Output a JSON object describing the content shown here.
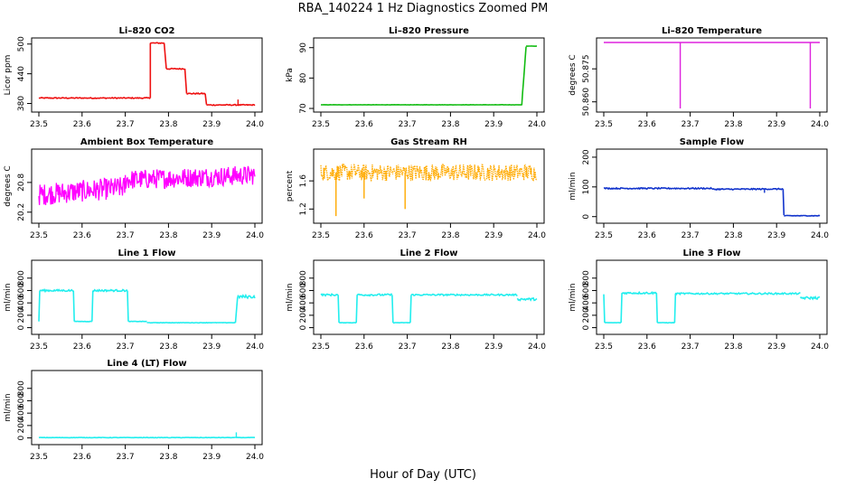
{
  "figure": {
    "title": "RBA_140224  1 Hz Diagnostics Zoomed PM",
    "xlabel": "Hour of Day (UTC)"
  },
  "chart_data": [
    {
      "type": "line",
      "title": "Li–820 CO2",
      "ylabel": "Licor ppm",
      "color": "#ee1111",
      "xlim": [
        23.5,
        24.0
      ],
      "xticks": [
        23.5,
        23.6,
        23.7,
        23.8,
        23.9,
        24.0
      ],
      "ylim": [
        370,
        505
      ],
      "yticks": [
        380,
        440,
        500
      ],
      "segments": [
        {
          "x": [
            23.5,
            23.758
          ],
          "y": [
            391,
            391
          ],
          "noise": 1
        },
        {
          "x": [
            23.758,
            23.758
          ],
          "y": [
            391,
            502
          ],
          "noise": 0
        },
        {
          "x": [
            23.758,
            23.79
          ],
          "y": [
            502,
            502
          ],
          "noise": 1
        },
        {
          "x": [
            23.79,
            23.795
          ],
          "y": [
            502,
            450
          ],
          "noise": 0
        },
        {
          "x": [
            23.795,
            23.838
          ],
          "y": [
            450,
            450
          ],
          "noise": 1
        },
        {
          "x": [
            23.838,
            23.842
          ],
          "y": [
            450,
            400
          ],
          "noise": 0
        },
        {
          "x": [
            23.842,
            23.885
          ],
          "y": [
            400,
            400
          ],
          "noise": 1
        },
        {
          "x": [
            23.885,
            23.888
          ],
          "y": [
            400,
            378
          ],
          "noise": 0
        },
        {
          "x": [
            23.888,
            24.0
          ],
          "y": [
            377,
            377
          ],
          "noise": 1
        }
      ],
      "spikes": [
        {
          "x": 23.961,
          "y": 388
        }
      ]
    },
    {
      "type": "line",
      "title": "Li–820 Pressure",
      "ylabel": "kPa",
      "color": "#11bb11",
      "xlim": [
        23.5,
        24.0
      ],
      "xticks": [
        23.5,
        23.6,
        23.7,
        23.8,
        23.9,
        24.0
      ],
      "ylim": [
        70,
        92
      ],
      "yticks": [
        70,
        80,
        90
      ],
      "segments": [
        {
          "x": [
            23.5,
            23.955
          ],
          "y": [
            71.2,
            71.2
          ],
          "noise": 0.05
        },
        {
          "x": [
            23.955,
            23.965
          ],
          "y": [
            71.2,
            71.2
          ],
          "noise": 0
        },
        {
          "x": [
            23.965,
            23.975
          ],
          "y": [
            71.2,
            90.5
          ],
          "noise": 0.3
        },
        {
          "x": [
            23.975,
            24.0
          ],
          "y": [
            90.5,
            90.5
          ],
          "noise": 0.05
        }
      ],
      "spikes": []
    },
    {
      "type": "line",
      "title": "Li–820 Temperature",
      "ylabel": "degrees C",
      "color": "#dd22dd",
      "xlim": [
        23.5,
        24.0
      ],
      "xticks": [
        23.5,
        23.6,
        23.7,
        23.8,
        23.9,
        24.0
      ],
      "ylim": [
        50.857,
        50.8874
      ],
      "yticks": [
        50.86,
        50.875
      ],
      "ytickLabels": [
        "50.860",
        "50.875"
      ],
      "segments": [
        {
          "x": [
            23.5,
            24.0
          ],
          "y": [
            50.887,
            50.887
          ],
          "noise": 0
        }
      ],
      "drops": [
        {
          "x": 23.677,
          "y": 50.857
        },
        {
          "x": 23.978,
          "y": 50.857
        }
      ]
    },
    {
      "type": "line",
      "title": "Ambient Box Temperature",
      "ylabel": "degrees C",
      "color": "#ff00ff",
      "xlim": [
        23.5,
        24.0
      ],
      "xticks": [
        23.5,
        23.6,
        23.7,
        23.8,
        23.9,
        24.0
      ],
      "ylim": [
        20.05,
        21.4
      ],
      "yticks": [
        20.2,
        20.8
      ],
      "segments": [
        {
          "x": [
            23.5,
            23.7
          ],
          "y": [
            20.55,
            20.7
          ],
          "noise": 0.22,
          "dense": true
        },
        {
          "x": [
            23.7,
            24.0
          ],
          "y": [
            20.85,
            20.95
          ],
          "noise": 0.2,
          "dense": true
        }
      ],
      "spikes": []
    },
    {
      "type": "line",
      "title": "Gas Stream RH",
      "ylabel": "percent",
      "color": "#ffaa00",
      "xlim": [
        23.5,
        24.0
      ],
      "xticks": [
        23.5,
        23.6,
        23.7,
        23.8,
        23.9,
        24.0
      ],
      "ylim": [
        1.05,
        2.0
      ],
      "yticks": [
        1.2,
        1.6
      ],
      "segments": [
        {
          "x": [
            23.5,
            24.0
          ],
          "y": [
            1.72,
            1.72
          ],
          "noise": 0.12,
          "dense": true,
          "dotted": true
        }
      ],
      "spikes": [
        {
          "x": 23.535,
          "y": 1.1
        },
        {
          "x": 23.695,
          "y": 1.2
        },
        {
          "x": 23.6,
          "y": 1.35
        }
      ]
    },
    {
      "type": "line",
      "title": "Sample Flow",
      "ylabel": "ml/min",
      "color": "#1133cc",
      "xlim": [
        23.5,
        24.0
      ],
      "xticks": [
        23.5,
        23.6,
        23.7,
        23.8,
        23.9,
        24.0
      ],
      "ylim": [
        -10,
        215
      ],
      "yticks": [
        0,
        100,
        200
      ],
      "segments": [
        {
          "x": [
            23.5,
            23.75
          ],
          "y": [
            95,
            95
          ],
          "noise": 2
        },
        {
          "x": [
            23.75,
            23.915
          ],
          "y": [
            92,
            93
          ],
          "noise": 2
        },
        {
          "x": [
            23.915,
            23.917
          ],
          "y": [
            93,
            5
          ],
          "noise": 0
        },
        {
          "x": [
            23.917,
            24.0
          ],
          "y": [
            3,
            3
          ],
          "noise": 1
        }
      ],
      "spikes": [
        {
          "x": 23.872,
          "y": 80
        }
      ]
    },
    {
      "type": "line",
      "title": "Line 1 Flow",
      "ylabel": "ml/min",
      "color": "#22eeee",
      "xlim": [
        23.5,
        24.0
      ],
      "xticks": [
        23.5,
        23.6,
        23.7,
        23.8,
        23.9,
        24.0
      ],
      "ylim": [
        -50,
        1030
      ],
      "yticks": [
        0,
        200,
        400,
        600,
        800
      ],
      "segments": [
        {
          "x": [
            23.5,
            23.502
          ],
          "y": [
            100,
            600
          ],
          "noise": 0
        },
        {
          "x": [
            23.502,
            23.58
          ],
          "y": [
            600,
            600
          ],
          "noise": 15
        },
        {
          "x": [
            23.58,
            23.582
          ],
          "y": [
            600,
            100
          ],
          "noise": 0
        },
        {
          "x": [
            23.582,
            23.623
          ],
          "y": [
            100,
            100
          ],
          "noise": 3
        },
        {
          "x": [
            23.623,
            23.625
          ],
          "y": [
            100,
            600
          ],
          "noise": 0
        },
        {
          "x": [
            23.625,
            23.705
          ],
          "y": [
            600,
            600
          ],
          "noise": 15
        },
        {
          "x": [
            23.705,
            23.707
          ],
          "y": [
            600,
            100
          ],
          "noise": 0
        },
        {
          "x": [
            23.707,
            23.75
          ],
          "y": [
            100,
            100
          ],
          "noise": 3
        },
        {
          "x": [
            23.75,
            23.955
          ],
          "y": [
            80,
            80
          ],
          "noise": 3
        },
        {
          "x": [
            23.955,
            23.96
          ],
          "y": [
            80,
            500
          ],
          "noise": 0
        },
        {
          "x": [
            23.96,
            24.0
          ],
          "y": [
            500,
            500
          ],
          "noise": 25
        }
      ],
      "spikes": []
    },
    {
      "type": "line",
      "title": "Line 2 Flow",
      "ylabel": "ml/min",
      "color": "#22eeee",
      "xlim": [
        23.5,
        24.0
      ],
      "xticks": [
        23.5,
        23.6,
        23.7,
        23.8,
        23.9,
        24.0
      ],
      "ylim": [
        -50,
        1030
      ],
      "yticks": [
        0,
        200,
        400,
        600,
        800
      ],
      "segments": [
        {
          "x": [
            23.5,
            23.54
          ],
          "y": [
            530,
            530
          ],
          "noise": 15
        },
        {
          "x": [
            23.54,
            23.542
          ],
          "y": [
            530,
            80
          ],
          "noise": 0
        },
        {
          "x": [
            23.542,
            23.582
          ],
          "y": [
            80,
            80
          ],
          "noise": 3
        },
        {
          "x": [
            23.582,
            23.584
          ],
          "y": [
            80,
            530
          ],
          "noise": 0
        },
        {
          "x": [
            23.584,
            23.665
          ],
          "y": [
            530,
            530
          ],
          "noise": 15
        },
        {
          "x": [
            23.665,
            23.667
          ],
          "y": [
            530,
            80
          ],
          "noise": 0
        },
        {
          "x": [
            23.667,
            23.707
          ],
          "y": [
            80,
            80
          ],
          "noise": 3
        },
        {
          "x": [
            23.707,
            23.709
          ],
          "y": [
            80,
            530
          ],
          "noise": 0
        },
        {
          "x": [
            23.709,
            23.955
          ],
          "y": [
            530,
            530
          ],
          "noise": 12
        },
        {
          "x": [
            23.955,
            24.0
          ],
          "y": [
            460,
            460
          ],
          "noise": 20
        }
      ],
      "spikes": []
    },
    {
      "type": "line",
      "title": "Line 3 Flow",
      "ylabel": "ml/min",
      "color": "#22eeee",
      "xlim": [
        23.5,
        24.0
      ],
      "xticks": [
        23.5,
        23.6,
        23.7,
        23.8,
        23.9,
        24.0
      ],
      "ylim": [
        -50,
        1030
      ],
      "yticks": [
        0,
        200,
        400,
        600,
        800
      ],
      "segments": [
        {
          "x": [
            23.5,
            23.502
          ],
          "y": [
            540,
            80
          ],
          "noise": 0
        },
        {
          "x": [
            23.502,
            23.54
          ],
          "y": [
            80,
            80
          ],
          "noise": 3
        },
        {
          "x": [
            23.54,
            23.542
          ],
          "y": [
            80,
            560
          ],
          "noise": 0
        },
        {
          "x": [
            23.542,
            23.622
          ],
          "y": [
            560,
            560
          ],
          "noise": 15
        },
        {
          "x": [
            23.622,
            23.624
          ],
          "y": [
            560,
            80
          ],
          "noise": 0
        },
        {
          "x": [
            23.624,
            23.664
          ],
          "y": [
            80,
            80
          ],
          "noise": 3
        },
        {
          "x": [
            23.664,
            23.666
          ],
          "y": [
            80,
            550
          ],
          "noise": 0
        },
        {
          "x": [
            23.666,
            23.955
          ],
          "y": [
            550,
            550
          ],
          "noise": 12
        },
        {
          "x": [
            23.955,
            24.0
          ],
          "y": [
            480,
            480
          ],
          "noise": 20
        }
      ],
      "spikes": []
    },
    {
      "type": "line",
      "title": "Line 4 (LT) Flow",
      "ylabel": "ml/min",
      "color": "#22eeee",
      "xlim": [
        23.5,
        24.0
      ],
      "xticks": [
        23.5,
        23.6,
        23.7,
        23.8,
        23.9,
        24.0
      ],
      "ylim": [
        -50,
        1030
      ],
      "yticks": [
        0,
        200,
        400,
        600,
        800
      ],
      "segments": [
        {
          "x": [
            23.5,
            24.0
          ],
          "y": [
            5,
            5
          ],
          "noise": 3
        }
      ],
      "spikes": [
        {
          "x": 23.957,
          "y": 90
        }
      ]
    }
  ]
}
